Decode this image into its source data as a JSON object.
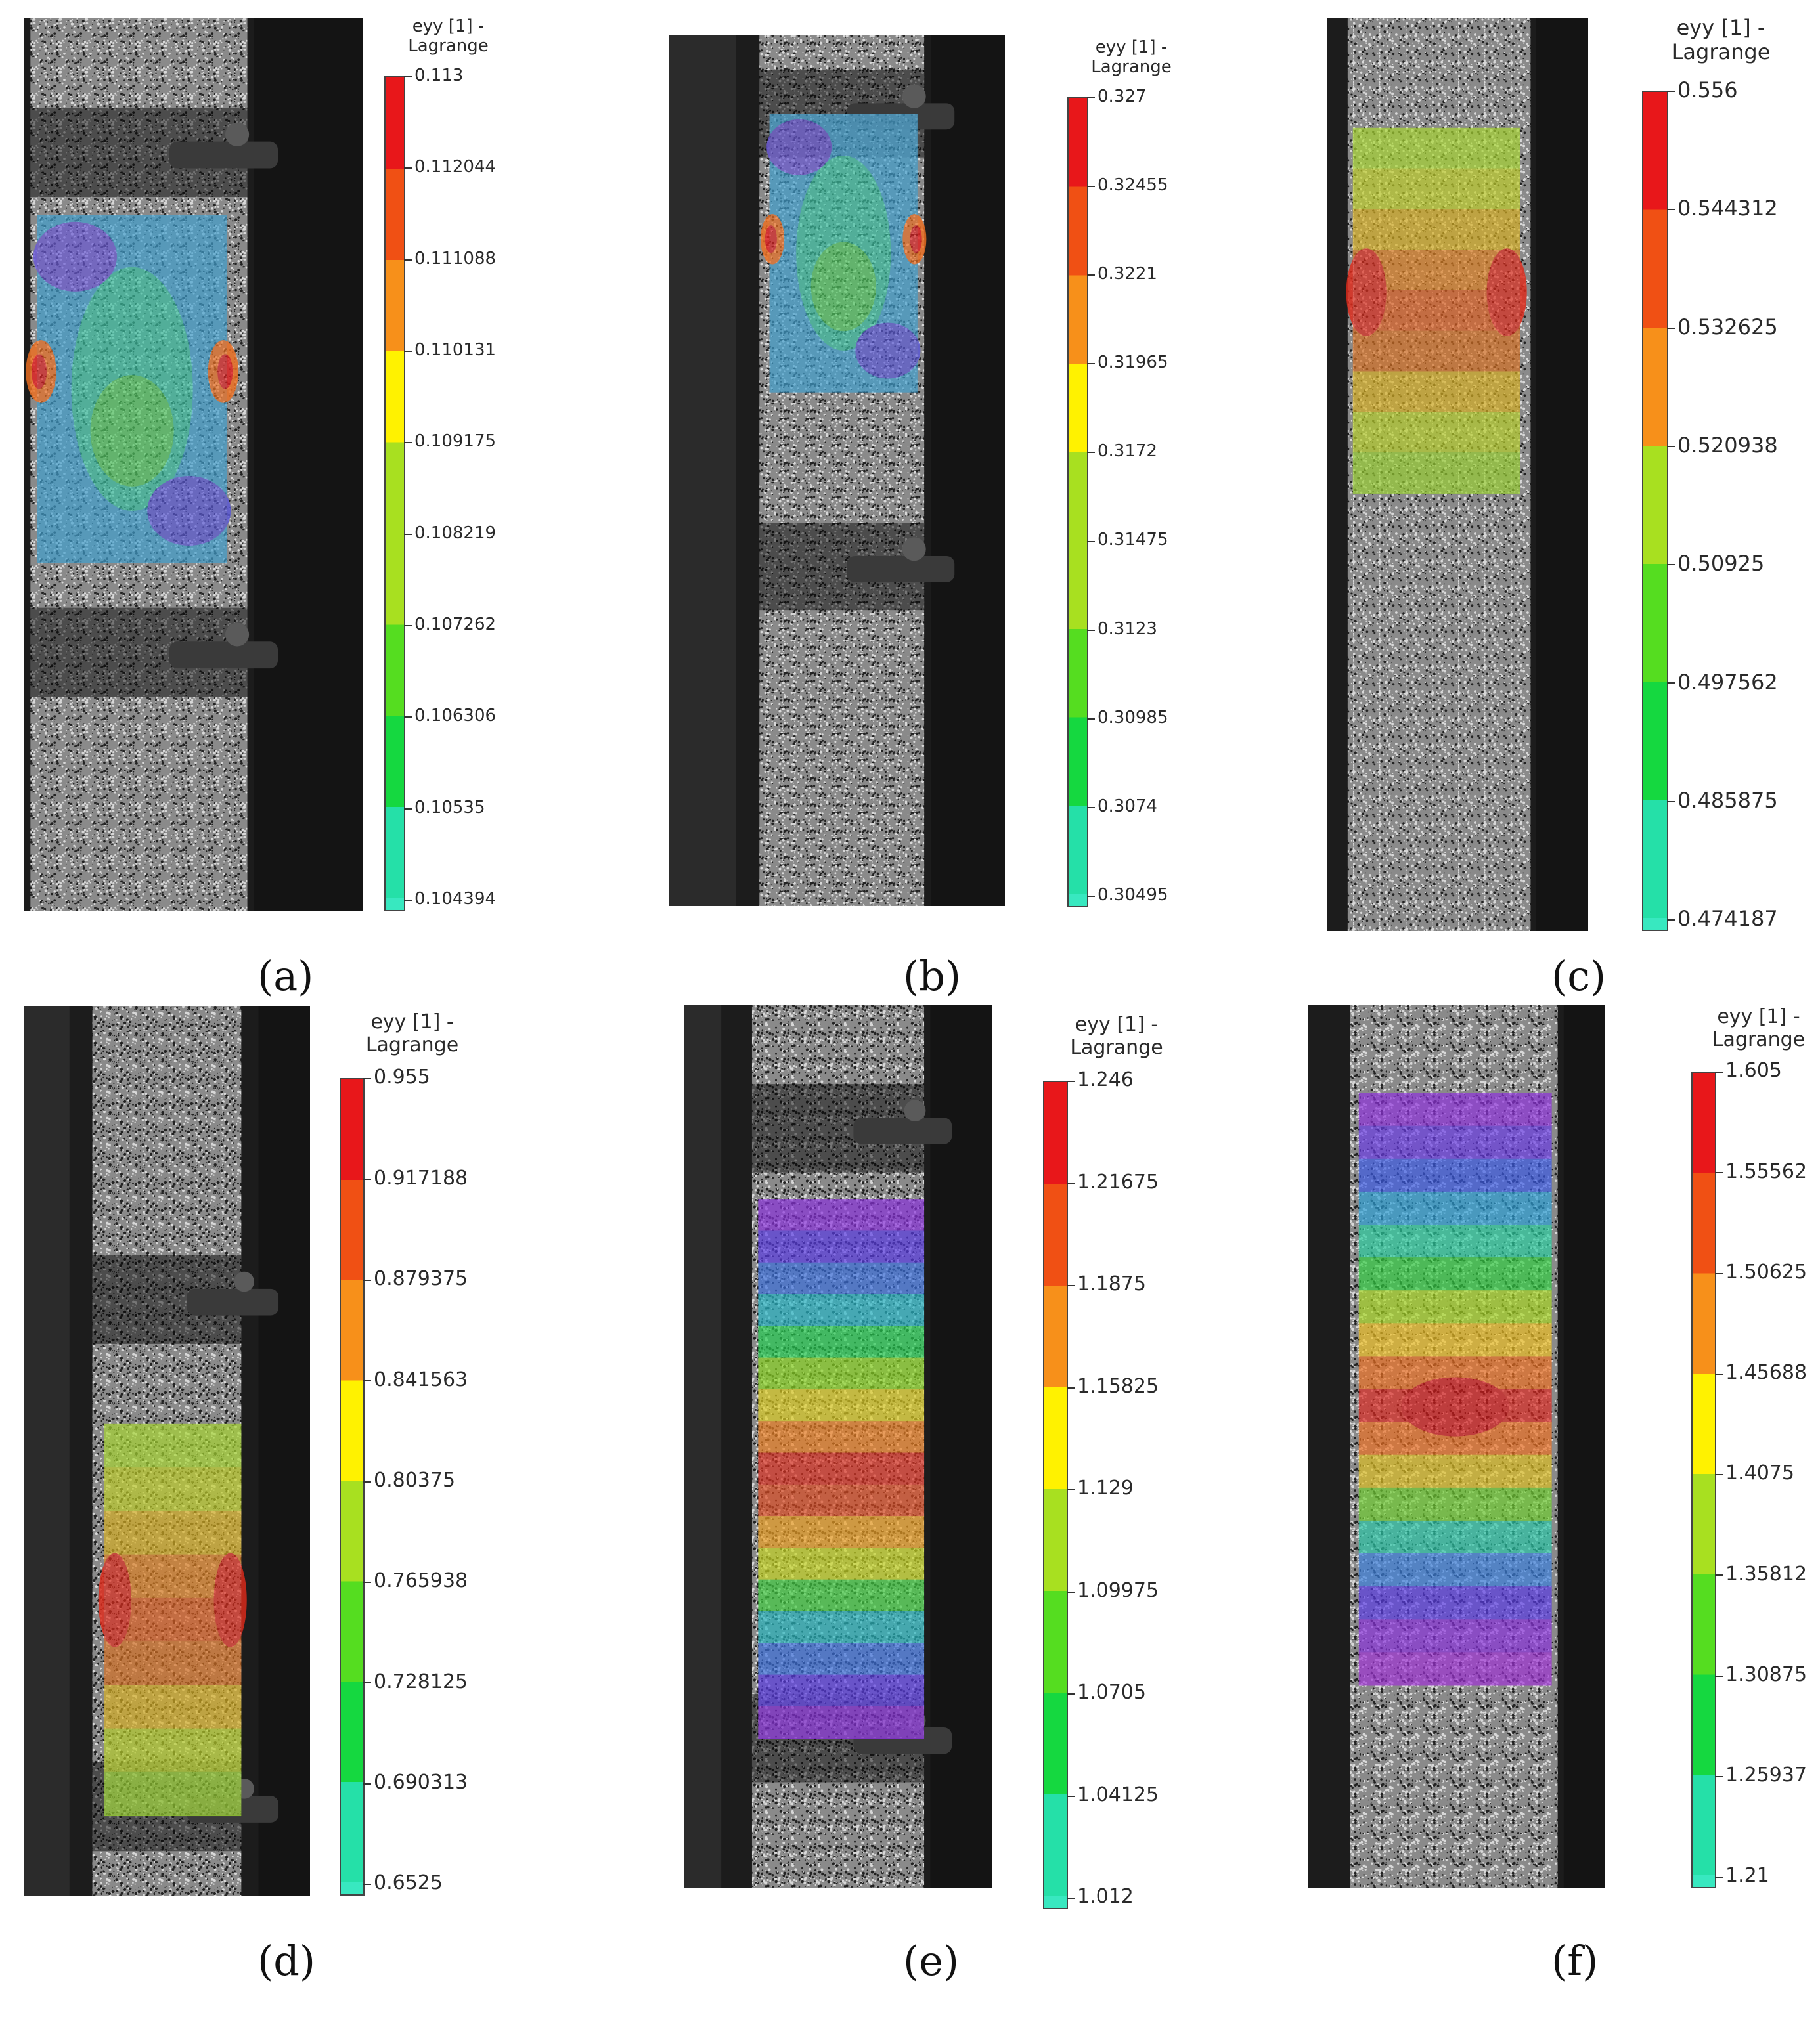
{
  "legend_title_line1": "eyy [1] -",
  "legend_title_line2": "Lagrange",
  "colormap": [
    "#e8171a",
    "#f05014",
    "#f7901a",
    "#fff200",
    "#a8e020",
    "#55dd20",
    "#15d840",
    "#25e0a8"
  ],
  "panels": [
    {
      "id": "a",
      "caption": "(a)",
      "ticks": [
        "0.113",
        "0.112044",
        "0.111088",
        "0.110131",
        "0.109175",
        "0.108219",
        "0.107262",
        "0.106306",
        "0.10535",
        "0.104394"
      ]
    },
    {
      "id": "b",
      "caption": "(b)",
      "ticks": [
        "0.327",
        "0.32455",
        "0.3221",
        "0.31965",
        "0.3172",
        "0.31475",
        "0.3123",
        "0.30985",
        "0.3074",
        "0.30495"
      ]
    },
    {
      "id": "c",
      "caption": "(c)",
      "ticks": [
        "0.556",
        "0.544312",
        "0.532625",
        "0.520938",
        "0.50925",
        "0.497562",
        "0.485875",
        "0.474187"
      ]
    },
    {
      "id": "d",
      "caption": "(d)",
      "ticks": [
        "0.955",
        "0.917188",
        "0.879375",
        "0.841563",
        "0.80375",
        "0.765938",
        "0.728125",
        "0.690313",
        "0.6525"
      ]
    },
    {
      "id": "e",
      "caption": "(e)",
      "ticks": [
        "1.246",
        "1.21675",
        "1.1875",
        "1.15825",
        "1.129",
        "1.09975",
        "1.0705",
        "1.04125",
        "1.012"
      ]
    },
    {
      "id": "f",
      "caption": "(f)",
      "ticks": [
        "1.605",
        "1.55562",
        "1.50625",
        "1.45688",
        "1.4075",
        "1.35812",
        "1.30875",
        "1.25937",
        "1.21"
      ]
    }
  ]
}
